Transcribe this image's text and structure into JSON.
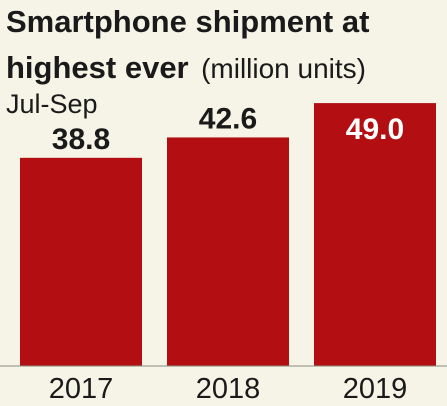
{
  "chart_data": {
    "type": "bar",
    "title_line1": "Smartphone shipment at",
    "title_line2": "highest ever",
    "unit": "(million units)",
    "subtitle": "Jul-Sep",
    "categories": [
      "2017",
      "2018",
      "2019"
    ],
    "values": [
      38.8,
      42.6,
      49.0
    ],
    "value_labels": [
      "38.8",
      "42.6",
      "49.0"
    ],
    "ylim": [
      0,
      52
    ],
    "grid": false,
    "legend": "none",
    "colors": {
      "bar": "#b30f12",
      "background": "#f5f4e6",
      "text": "#1a1a1a",
      "highlight_label": "#ffffff"
    }
  }
}
